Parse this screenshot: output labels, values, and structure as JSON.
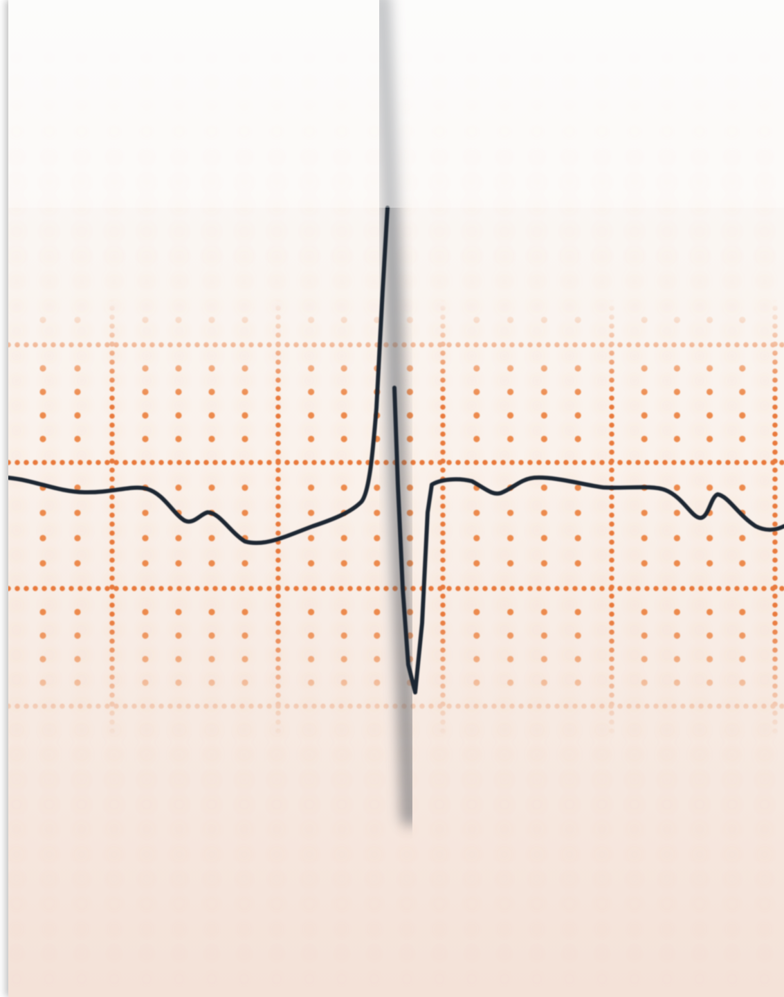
{
  "image": {
    "subject": "ecg-trace-on-graph-paper",
    "colors": {
      "paper_top": "#fbfaf8",
      "paper_bottom": "#f6e6de",
      "grid_major": "#e87a3c",
      "grid_minor": "#ec8a4e",
      "trace": "#1e2530"
    }
  }
}
